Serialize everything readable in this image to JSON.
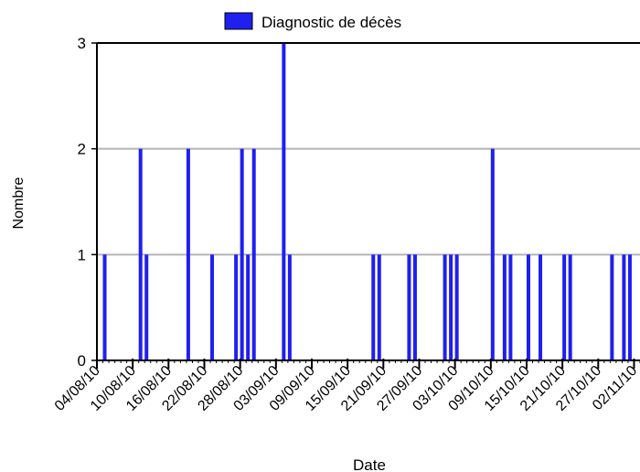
{
  "chart_data": {
    "type": "bar",
    "xlabel": "Date",
    "ylabel": "Nombre",
    "ylim": [
      0,
      3
    ],
    "y_ticks": [
      0,
      1,
      2,
      3
    ],
    "x_start": "2010-08-04",
    "x_end": "2010-11-03",
    "x_tick_labels": [
      "04/08/10",
      "10/08/10",
      "16/08/10",
      "22/08/10",
      "28/08/10",
      "03/09/10",
      "09/09/10",
      "15/09/10",
      "21/09/10",
      "27/09/10",
      "03/10/10",
      "09/10/10",
      "15/10/10",
      "21/10/10",
      "27/10/10",
      "02/11/10"
    ],
    "grid": "horizontal",
    "legend_position": "top",
    "series": [
      {
        "name": "Diagnostic de décès",
        "color": "#1f1ff0",
        "points": [
          {
            "x": "2010-08-05",
            "y": 1
          },
          {
            "x": "2010-08-11",
            "y": 2
          },
          {
            "x": "2010-08-12",
            "y": 1
          },
          {
            "x": "2010-08-19",
            "y": 2
          },
          {
            "x": "2010-08-23",
            "y": 1
          },
          {
            "x": "2010-08-27",
            "y": 1
          },
          {
            "x": "2010-08-28",
            "y": 2
          },
          {
            "x": "2010-08-29",
            "y": 1
          },
          {
            "x": "2010-08-30",
            "y": 2
          },
          {
            "x": "2010-09-04",
            "y": 3
          },
          {
            "x": "2010-09-05",
            "y": 1
          },
          {
            "x": "2010-09-19",
            "y": 1
          },
          {
            "x": "2010-09-20",
            "y": 1
          },
          {
            "x": "2010-09-25",
            "y": 1
          },
          {
            "x": "2010-09-26",
            "y": 1
          },
          {
            "x": "2010-10-01",
            "y": 1
          },
          {
            "x": "2010-10-02",
            "y": 1
          },
          {
            "x": "2010-10-03",
            "y": 1
          },
          {
            "x": "2010-10-09",
            "y": 2
          },
          {
            "x": "2010-10-11",
            "y": 1
          },
          {
            "x": "2010-10-12",
            "y": 1
          },
          {
            "x": "2010-10-15",
            "y": 1
          },
          {
            "x": "2010-10-17",
            "y": 1
          },
          {
            "x": "2010-10-21",
            "y": 1
          },
          {
            "x": "2010-10-22",
            "y": 1
          },
          {
            "x": "2010-10-29",
            "y": 1
          },
          {
            "x": "2010-10-31",
            "y": 1
          },
          {
            "x": "2010-11-01",
            "y": 1
          }
        ]
      }
    ]
  }
}
